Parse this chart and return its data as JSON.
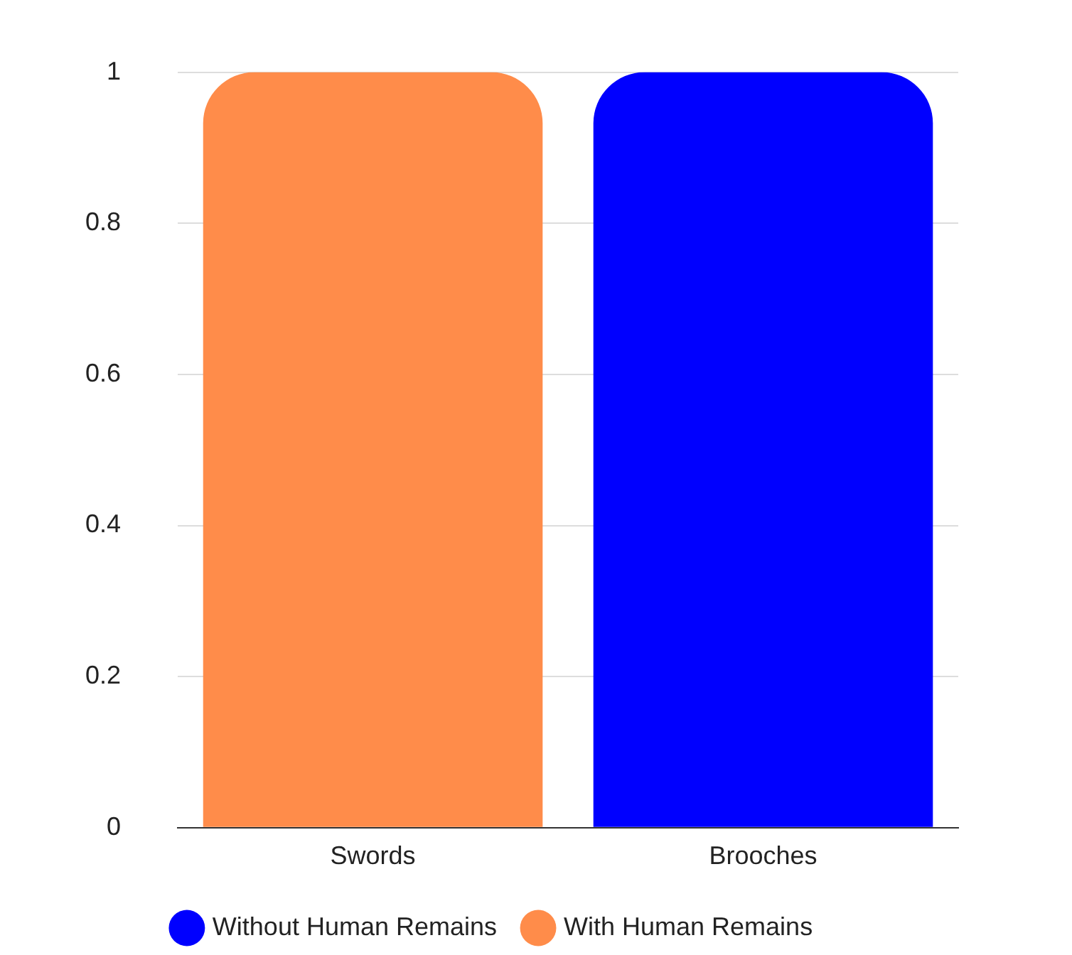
{
  "chart_data": {
    "type": "bar",
    "stacked": true,
    "categories": [
      "Swords",
      "Brooches"
    ],
    "series": [
      {
        "name": "Without Human Remains",
        "color": "#0000ff",
        "values": [
          0,
          1
        ]
      },
      {
        "name": "With Human Remains",
        "color": "#ff8c4a",
        "values": [
          1,
          0
        ]
      }
    ],
    "ylim": [
      0,
      1
    ],
    "yticks": [
      0,
      0.2,
      0.4,
      0.6,
      0.8,
      1
    ],
    "grid": "y",
    "legend": "bottom"
  }
}
